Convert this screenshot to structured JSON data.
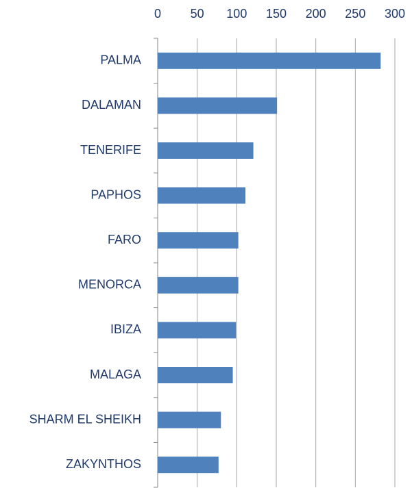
{
  "chart_data": {
    "type": "bar",
    "orientation": "horizontal",
    "categories": [
      "PALMA",
      "DALAMAN",
      "TENERIFE",
      "PAPHOS",
      "FARO",
      "MENORCA",
      "IBIZA",
      "MALAGA",
      "SHARM EL SHEIKH",
      "ZAKYNTHOS"
    ],
    "values": [
      282,
      151,
      121,
      111,
      102,
      102,
      99,
      95,
      80,
      77
    ],
    "color": "#4f81bd",
    "xlim": [
      0,
      300
    ],
    "xticks": [
      0,
      50,
      100,
      150,
      200,
      250,
      300
    ],
    "grid": true,
    "x_axis_position": "top"
  }
}
